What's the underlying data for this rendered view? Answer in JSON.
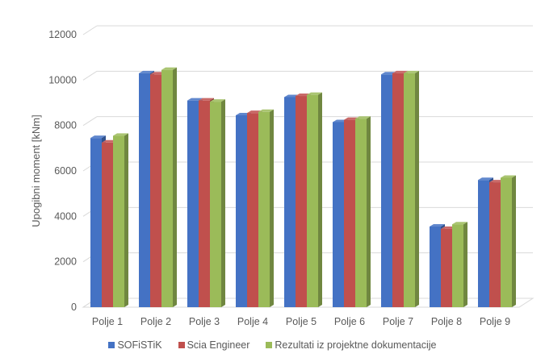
{
  "chart_data": {
    "type": "bar",
    "style": "3d-clustered-column",
    "categories": [
      "Polje 1",
      "Polje 2",
      "Polje 3",
      "Polje 4",
      "Polje 5",
      "Polje 6",
      "Polje 7",
      "Polje 8",
      "Polje 9"
    ],
    "series": [
      {
        "name": "SOFiSTiK",
        "color": "#4472C4",
        "values": [
          7450,
          10300,
          9100,
          8450,
          9250,
          8150,
          10250,
          3550,
          5600
        ]
      },
      {
        "name": "Scia Engineer",
        "color": "#C0504D",
        "values": [
          7250,
          10250,
          9100,
          8550,
          9300,
          8250,
          10300,
          3450,
          5500
        ]
      },
      {
        "name": "Rezultati iz projektne dokumentacije",
        "color": "#9BBB59",
        "values": [
          7550,
          10450,
          9050,
          8600,
          9350,
          8300,
          10300,
          3650,
          5700
        ]
      }
    ],
    "ylabel": "Upogibni moment [kNm]",
    "xlabel": "",
    "title": "",
    "ylim": [
      0,
      12000
    ],
    "yticks": [
      0,
      2000,
      4000,
      6000,
      8000,
      10000,
      12000
    ],
    "grid": true,
    "legend_position": "bottom"
  }
}
